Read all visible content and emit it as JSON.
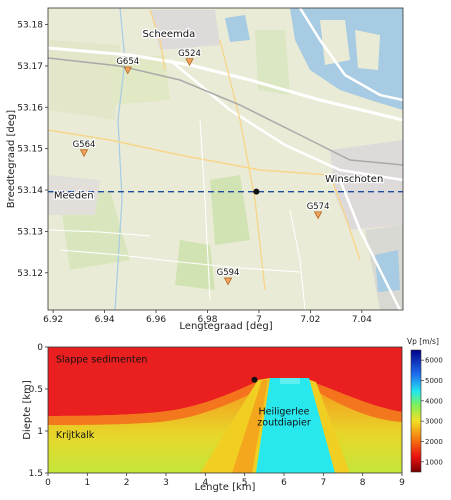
{
  "colors": {
    "land": "#eaebd6",
    "water": "#a6cbe3",
    "road_major": "#ffffff",
    "road_secondary": "#f6d68c",
    "rail": "#a9a9a9",
    "urban": "#dedada",
    "field_green": "#d2e3b3",
    "marker_fill": "#f4a460",
    "marker_stroke": "#b0651d",
    "profile_line": "#1f4e9c",
    "source": "#111111",
    "sed_red": "#ea2020",
    "chalk_orange": "#f59a1c",
    "yellow": "#f0cf22",
    "salt_cyan": "#28e8ee"
  },
  "chart_data": [
    {
      "type": "scatter",
      "title": "",
      "xlabel": "Lengtegraad [deg]",
      "ylabel": "Breedtegraad [deg]",
      "xlim": [
        6.918,
        7.056
      ],
      "ylim": [
        53.111,
        53.184
      ],
      "xticks": [
        "6.92",
        "6.94",
        "6.96",
        "6.98",
        "7",
        "7.02",
        "7.04"
      ],
      "xtick_values": [
        6.92,
        6.94,
        6.96,
        6.98,
        7.0,
        7.02,
        7.04
      ],
      "yticks": [
        "53.12",
        "53.13",
        "53.14",
        "53.15",
        "53.16",
        "53.17",
        "53.18"
      ],
      "ytick_values": [
        53.12,
        53.13,
        53.14,
        53.15,
        53.16,
        53.17,
        53.18
      ],
      "stations": [
        {
          "name": "G654",
          "x": 6.949,
          "y": 53.169
        },
        {
          "name": "G524",
          "x": 6.973,
          "y": 53.171
        },
        {
          "name": "G564",
          "x": 6.932,
          "y": 53.149
        },
        {
          "name": "G574",
          "x": 7.023,
          "y": 53.134
        },
        {
          "name": "G594",
          "x": 6.988,
          "y": 53.118
        }
      ],
      "source_point": {
        "x": 6.999,
        "y": 53.1396
      },
      "profile_lat": 53.1396,
      "places": [
        {
          "name": "Scheemda",
          "x": 6.965,
          "y": 53.177
        },
        {
          "name": "Winschoten",
          "x": 7.037,
          "y": 53.142
        },
        {
          "name": "Meeden",
          "x": 6.928,
          "y": 53.138
        }
      ]
    },
    {
      "type": "heatmap",
      "title": "",
      "xlabel": "Lengte [km]",
      "ylabel": "Diepte [km]",
      "xlim": [
        0,
        9
      ],
      "ylim": [
        1.5,
        0
      ],
      "xticks": [
        "0",
        "1",
        "2",
        "3",
        "4",
        "5",
        "6",
        "7",
        "8",
        "9"
      ],
      "xtick_values": [
        0,
        1,
        2,
        3,
        4,
        5,
        6,
        7,
        8,
        9
      ],
      "yticks": [
        "0",
        "0.5",
        "1",
        "1.5"
      ],
      "ytick_values": [
        0,
        0.5,
        1,
        1.5
      ],
      "colorbar": {
        "label": "Vp [m/s]",
        "min": 500,
        "max": 6500,
        "ticks": [
          "1000",
          "2000",
          "3000",
          "4000",
          "5000",
          "6000"
        ],
        "tick_values": [
          1000,
          2000,
          3000,
          4000,
          5000,
          6000
        ]
      },
      "source_point": {
        "x": 5.25,
        "y": 0.39
      },
      "annotations": [
        {
          "text": "Slappe sedimenten",
          "x": 0.2,
          "y": 0.15
        },
        {
          "text": "Krijtkalk",
          "x": 0.2,
          "y": 1.05
        },
        {
          "text": "Heiligerlee",
          "x": 6.0,
          "y": 0.77
        },
        {
          "text": "zoutdiapier",
          "x": 6.0,
          "y": 0.9
        }
      ]
    }
  ]
}
